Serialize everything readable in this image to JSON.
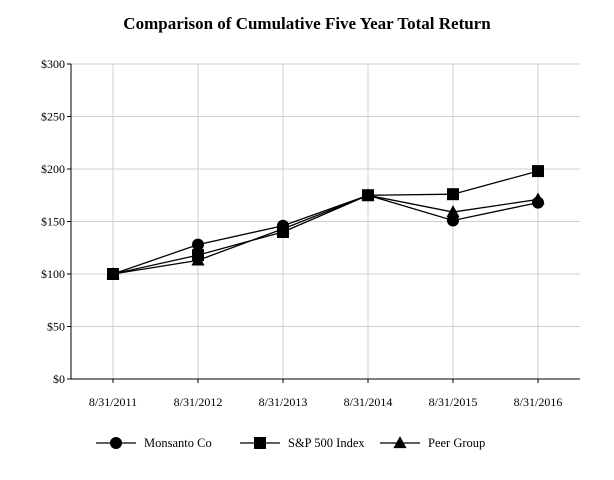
{
  "chart_data": {
    "type": "line",
    "title": "Comparison of Cumulative Five Year Total Return",
    "xlabel": "",
    "ylabel": "",
    "categories": [
      "8/31/2011",
      "8/31/2012",
      "8/31/2013",
      "8/31/2014",
      "8/31/2015",
      "8/31/2016"
    ],
    "ylim": [
      0,
      300
    ],
    "yticks": [
      0,
      50,
      100,
      150,
      200,
      250,
      300
    ],
    "ytick_labels": [
      "$0",
      "$50",
      "$100",
      "$150",
      "$200",
      "$250",
      "$300"
    ],
    "grid": true,
    "legend_position": "bottom",
    "series": [
      {
        "name": "Monsanto Co",
        "marker": "circle",
        "color": "#000000",
        "values": [
          100,
          128,
          146,
          175,
          151,
          168
        ]
      },
      {
        "name": "S&P 500 Index",
        "marker": "square",
        "color": "#000000",
        "values": [
          100,
          118,
          140,
          175,
          176,
          198
        ]
      },
      {
        "name": "Peer Group",
        "marker": "triangle",
        "color": "#000000",
        "values": [
          100,
          113,
          143,
          175,
          159,
          171
        ]
      }
    ]
  }
}
